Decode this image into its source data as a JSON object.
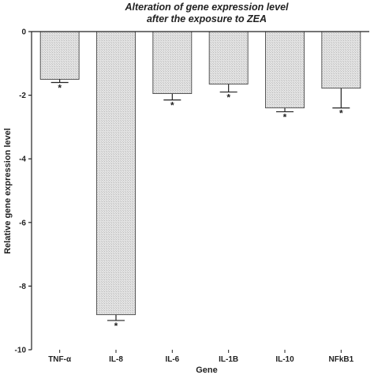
{
  "chart_data": {
    "type": "bar",
    "title": [
      "Alteration of gene expression level",
      "after the exposure to ZEA"
    ],
    "xlabel": "Gene",
    "ylabel": "Relative gene expression level",
    "ylim": [
      -10,
      0
    ],
    "yticks": [
      0,
      -2,
      -4,
      -6,
      -8,
      -10
    ],
    "grid": false,
    "categories": [
      "TNF-α",
      "IL-8",
      "IL-6",
      "IL-1B",
      "IL-10",
      "NFkB1"
    ],
    "values": [
      -1.5,
      -8.9,
      -1.95,
      -1.65,
      -2.4,
      -1.78
    ],
    "errors": [
      0.1,
      0.18,
      0.2,
      0.25,
      0.12,
      0.62
    ],
    "significance": [
      "*",
      "*",
      "*",
      "*",
      "*",
      "*"
    ],
    "colors": {
      "bar_fill": "#d6d6d6",
      "bar_stroke": "#333333",
      "axis": "#222222"
    }
  }
}
